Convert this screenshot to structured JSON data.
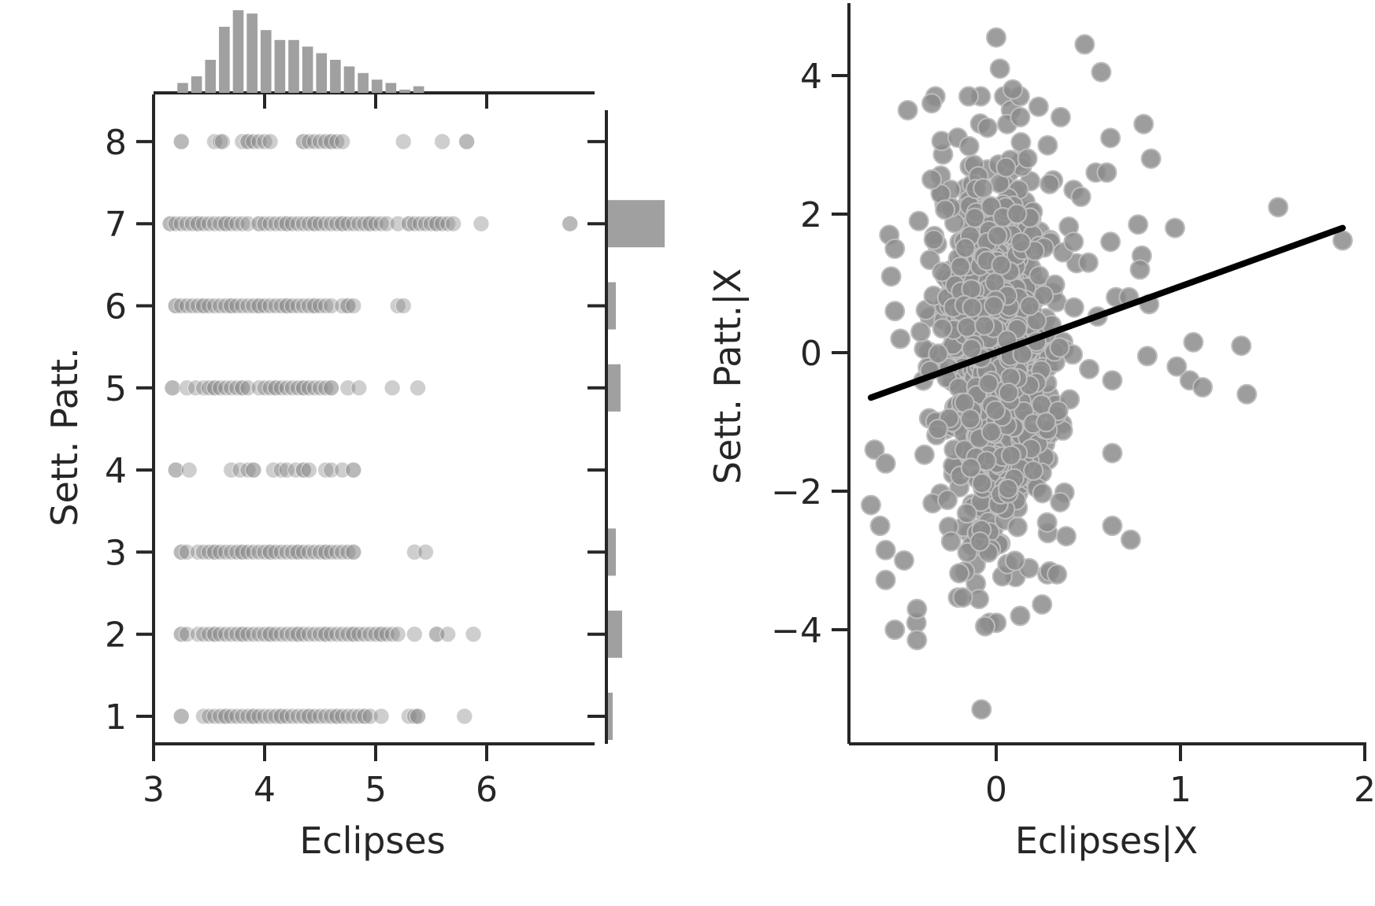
{
  "chart_data": [
    {
      "type": "scatter",
      "xlabel": "Eclipses",
      "ylabel": "Sett. Patt.",
      "xlim": [
        3,
        7
      ],
      "ylim": [
        0.65,
        8.5
      ],
      "xticks": [
        "3",
        "4",
        "5",
        "6"
      ],
      "yticks": [
        "1",
        "2",
        "3",
        "4",
        "5",
        "6",
        "7",
        "8"
      ],
      "point_color": "#a9a9a9",
      "points": [
        {
          "y": 1,
          "x": [
            3.25,
            3.45,
            3.5,
            3.55,
            3.6,
            3.65,
            3.7,
            3.75,
            3.8,
            3.85,
            3.9,
            3.95,
            4.0,
            4.05,
            4.1,
            4.15,
            4.2,
            4.25,
            4.3,
            4.35,
            4.4,
            4.45,
            4.5,
            4.55,
            4.6,
            4.65,
            4.7,
            4.75,
            4.8,
            4.85,
            4.9,
            4.95,
            5.05,
            5.3,
            5.35,
            5.38,
            5.8
          ]
        },
        {
          "y": 2,
          "x": [
            3.25,
            3.3,
            3.4,
            3.45,
            3.5,
            3.55,
            3.6,
            3.65,
            3.7,
            3.75,
            3.8,
            3.85,
            3.9,
            3.95,
            4.0,
            4.05,
            4.1,
            4.15,
            4.2,
            4.25,
            4.3,
            4.35,
            4.4,
            4.45,
            4.5,
            4.55,
            4.6,
            4.65,
            4.7,
            4.75,
            4.8,
            4.85,
            4.9,
            4.95,
            5.0,
            5.05,
            5.1,
            5.15,
            5.2,
            5.35,
            5.55,
            5.65,
            5.88
          ]
        },
        {
          "y": 3,
          "x": [
            3.25,
            3.3,
            3.4,
            3.45,
            3.5,
            3.55,
            3.6,
            3.65,
            3.7,
            3.75,
            3.8,
            3.85,
            3.9,
            3.95,
            4.0,
            4.05,
            4.1,
            4.15,
            4.2,
            4.25,
            4.3,
            4.35,
            4.4,
            4.45,
            4.5,
            4.55,
            4.6,
            4.65,
            4.7,
            4.75,
            4.8,
            5.35,
            5.45
          ]
        },
        {
          "y": 4,
          "x": [
            3.2,
            3.32,
            3.7,
            3.78,
            3.85,
            3.9,
            4.08,
            4.15,
            4.2,
            4.28,
            4.35,
            4.4,
            4.55,
            4.6,
            4.7,
            4.8
          ]
        },
        {
          "y": 5,
          "x": [
            3.17,
            3.3,
            3.38,
            3.45,
            3.5,
            3.55,
            3.6,
            3.65,
            3.7,
            3.75,
            3.8,
            3.85,
            3.95,
            4.0,
            4.05,
            4.1,
            4.15,
            4.2,
            4.25,
            4.3,
            4.35,
            4.4,
            4.45,
            4.5,
            4.55,
            4.6,
            4.75,
            4.85,
            5.15,
            5.38
          ]
        },
        {
          "y": 6,
          "x": [
            3.2,
            3.25,
            3.3,
            3.35,
            3.4,
            3.45,
            3.5,
            3.55,
            3.6,
            3.65,
            3.7,
            3.75,
            3.8,
            3.85,
            3.9,
            3.95,
            4.0,
            4.05,
            4.1,
            4.15,
            4.2,
            4.25,
            4.3,
            4.35,
            4.4,
            4.45,
            4.5,
            4.55,
            4.6,
            4.7,
            4.75,
            4.8,
            5.2,
            5.25
          ]
        },
        {
          "y": 7,
          "x": [
            3.15,
            3.2,
            3.25,
            3.3,
            3.35,
            3.4,
            3.45,
            3.5,
            3.55,
            3.6,
            3.65,
            3.7,
            3.75,
            3.8,
            3.85,
            3.95,
            4.0,
            4.05,
            4.1,
            4.15,
            4.2,
            4.25,
            4.3,
            4.35,
            4.4,
            4.45,
            4.5,
            4.55,
            4.6,
            4.65,
            4.7,
            4.75,
            4.8,
            4.85,
            4.9,
            4.95,
            5.0,
            5.05,
            5.1,
            5.2,
            5.3,
            5.35,
            5.4,
            5.45,
            5.5,
            5.55,
            5.6,
            5.65,
            5.7,
            5.95,
            6.75
          ]
        },
        {
          "y": 8,
          "x": [
            3.25,
            3.55,
            3.6,
            3.62,
            3.8,
            3.85,
            3.9,
            3.95,
            4.0,
            4.05,
            4.35,
            4.4,
            4.45,
            4.5,
            4.55,
            4.6,
            4.65,
            4.7,
            5.25,
            5.6,
            5.82
          ]
        }
      ],
      "marginal_x": {
        "bin_edges_start": 3.2,
        "bin_width": 0.125,
        "counts": [
          3,
          5,
          10,
          20,
          25,
          24,
          19,
          16,
          16,
          14,
          12,
          10,
          8,
          6,
          4,
          3,
          1,
          2
        ],
        "color": "#a0a0a0"
      },
      "marginal_y": {
        "categories": [
          1,
          2,
          3,
          4,
          5,
          6,
          7,
          8
        ],
        "counts": [
          3,
          9,
          5,
          0,
          8,
          5,
          36,
          0
        ],
        "color": "#a0a0a0"
      }
    },
    {
      "type": "scatter",
      "xlabel": "Eclipses|X",
      "ylabel": "Sett. Patt.|X",
      "xlim": [
        -0.8,
        2.0
      ],
      "ylim": [
        -5.6,
        5.0
      ],
      "xticks": [
        "0",
        "1",
        "2"
      ],
      "yticks": [
        "4",
        "2",
        "0",
        "−2",
        "−4"
      ],
      "point_color": "#8c8c8c",
      "regression_line": {
        "x": [
          -0.68,
          1.88
        ],
        "y": [
          -0.65,
          1.8
        ],
        "color": "#000000"
      },
      "outliers": [
        {
          "x": -0.68,
          "y": -2.2
        },
        {
          "x": -0.63,
          "y": -2.5
        },
        {
          "x": -0.6,
          "y": -2.85
        },
        {
          "x": -0.55,
          "y": -4.0
        },
        {
          "x": -0.43,
          "y": -4.15
        },
        {
          "x": -0.48,
          "y": 3.5
        },
        {
          "x": -0.35,
          "y": 3.6
        },
        {
          "x": -0.35,
          "y": 2.5
        },
        {
          "x": 0.0,
          "y": 4.55
        },
        {
          "x": 0.02,
          "y": 4.1
        },
        {
          "x": 0.09,
          "y": 3.8
        },
        {
          "x": 0.23,
          "y": 3.55
        },
        {
          "x": 0.48,
          "y": 4.45
        },
        {
          "x": 0.57,
          "y": 4.05
        },
        {
          "x": 0.62,
          "y": 3.1
        },
        {
          "x": 0.8,
          "y": 3.3
        },
        {
          "x": 0.84,
          "y": 2.8
        },
        {
          "x": 0.54,
          "y": 2.6
        },
        {
          "x": 0.6,
          "y": 2.6
        },
        {
          "x": 0.77,
          "y": 1.85
        },
        {
          "x": 0.97,
          "y": 1.8
        },
        {
          "x": 0.62,
          "y": 1.6
        },
        {
          "x": 0.79,
          "y": 1.4
        },
        {
          "x": 0.78,
          "y": 1.2
        },
        {
          "x": 1.53,
          "y": 2.1
        },
        {
          "x": 1.88,
          "y": 1.62
        },
        {
          "x": 0.65,
          "y": 0.8
        },
        {
          "x": 0.72,
          "y": 0.8
        },
        {
          "x": 0.83,
          "y": 0.7
        },
        {
          "x": 1.07,
          "y": 0.15
        },
        {
          "x": 1.33,
          "y": 0.1
        },
        {
          "x": 0.82,
          "y": -0.05
        },
        {
          "x": 0.98,
          "y": -0.2
        },
        {
          "x": 1.05,
          "y": -0.4
        },
        {
          "x": 1.12,
          "y": -0.5
        },
        {
          "x": 1.36,
          "y": -0.6
        },
        {
          "x": 0.63,
          "y": -0.4
        },
        {
          "x": 0.63,
          "y": -1.45
        },
        {
          "x": 0.63,
          "y": -2.5
        },
        {
          "x": 0.73,
          "y": -2.7
        },
        {
          "x": 0.38,
          "y": -2.65
        },
        {
          "x": 0.33,
          "y": -3.2
        },
        {
          "x": 0.13,
          "y": -3.8
        },
        {
          "x": -0.08,
          "y": -5.15
        },
        {
          "x": -0.06,
          "y": -3.95
        },
        {
          "x": -0.43,
          "y": -3.7
        },
        {
          "x": -0.5,
          "y": -3.0
        },
        {
          "x": -0.66,
          "y": -1.4
        },
        {
          "x": -0.6,
          "y": -1.6
        },
        {
          "x": -0.58,
          "y": 1.7
        },
        {
          "x": -0.55,
          "y": 1.5
        },
        {
          "x": -0.57,
          "y": 1.1
        },
        {
          "x": -0.55,
          "y": 0.6
        },
        {
          "x": -0.52,
          "y": 0.2
        },
        {
          "x": -0.42,
          "y": 1.9
        },
        {
          "x": -0.41,
          "y": 0.3
        },
        {
          "x": 0.06,
          "y": 3.3
        },
        {
          "x": 0.13,
          "y": 3.4
        },
        {
          "x": 0.35,
          "y": 3.4
        },
        {
          "x": 0.42,
          "y": 2.35
        },
        {
          "x": 0.46,
          "y": 2.25
        },
        {
          "x": 0.42,
          "y": 1.6
        },
        {
          "x": 0.5,
          "y": 1.3
        }
      ],
      "cluster": {
        "center_x": 0.0,
        "center_y": 0.0,
        "sd_x": 0.16,
        "sd_y": 1.35,
        "count": 900,
        "seed": 7
      }
    }
  ]
}
